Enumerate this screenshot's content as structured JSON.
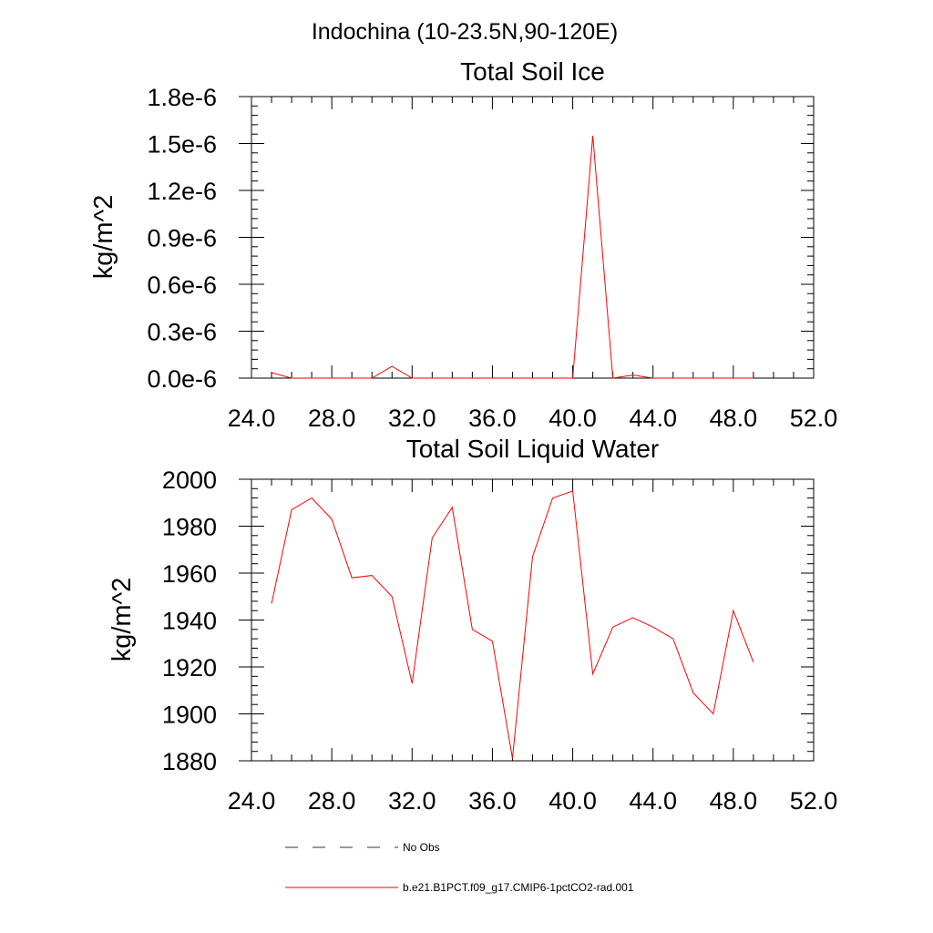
{
  "figure_title": "Indochina (10-23.5N,90-120E)",
  "legend": {
    "obs_label": "No Obs",
    "model_label": "b.e21.B1PCT.f09_g17.CMIP6-1pctCO2-rad.001"
  },
  "colors": {
    "model_line": "#ff0000",
    "obs_line": "#2b2b5e",
    "axes": "#000000"
  },
  "chart_data": [
    {
      "type": "line",
      "title": "Total Soil Ice",
      "xlabel": "",
      "ylabel": "kg/m^2",
      "xlim": [
        24.0,
        52.0
      ],
      "ylim": [
        0.0,
        1.8e-06
      ],
      "xticks": [
        "24.0",
        "28.0",
        "32.0",
        "36.0",
        "40.0",
        "44.0",
        "48.0",
        "52.0"
      ],
      "yticks": [
        "0.0e-6",
        "0.3e-6",
        "0.6e-6",
        "0.9e-6",
        "1.2e-6",
        "1.5e-6",
        "1.8e-6"
      ],
      "grid": false,
      "series": [
        {
          "x": [
            25,
            26,
            27,
            28,
            29,
            30,
            31,
            32,
            33,
            34,
            35,
            36,
            37,
            38,
            39,
            40,
            41,
            42,
            43,
            44,
            45,
            46,
            47,
            48,
            49
          ],
          "values": [
            3.5e-08,
            0,
            0,
            0,
            0,
            0,
            7.5e-08,
            0,
            0,
            0,
            0,
            0,
            0,
            0,
            0,
            0,
            1.55e-06,
            0,
            2e-08,
            0,
            0,
            0,
            0,
            0,
            0
          ]
        }
      ]
    },
    {
      "type": "line",
      "title": "Total Soil Liquid Water",
      "xlabel": "",
      "ylabel": "kg/m^2",
      "xlim": [
        24.0,
        52.0
      ],
      "ylim": [
        1880,
        2000
      ],
      "xticks": [
        "24.0",
        "28.0",
        "32.0",
        "36.0",
        "40.0",
        "44.0",
        "48.0",
        "52.0"
      ],
      "yticks": [
        "1880",
        "1900",
        "1920",
        "1940",
        "1960",
        "1980",
        "2000"
      ],
      "grid": false,
      "series": [
        {
          "x": [
            25,
            26,
            27,
            28,
            29,
            30,
            31,
            32,
            33,
            34,
            35,
            36,
            37,
            38,
            39,
            40,
            41,
            42,
            43,
            44,
            45,
            46,
            47,
            48,
            49
          ],
          "values": [
            1947,
            1987,
            1992,
            1983,
            1958,
            1959,
            1950,
            1913,
            1975,
            1988,
            1936,
            1931,
            1881,
            1967,
            1992,
            1995,
            1917,
            1937,
            1941,
            1937,
            1932,
            1909,
            1900,
            1944,
            1922
          ]
        }
      ]
    }
  ]
}
